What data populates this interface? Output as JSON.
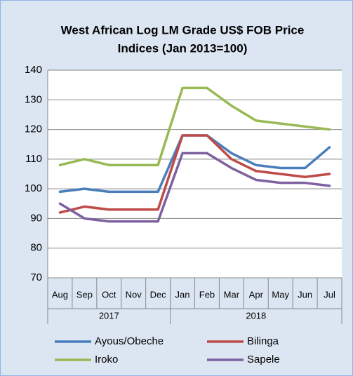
{
  "chart_data": {
    "type": "line",
    "title": [
      "West African Log LM Grade US$ FOB Price",
      "Indices (Jan 2013=100)"
    ],
    "categories": [
      "Aug",
      "Sep",
      "Oct",
      "Nov",
      "Dec",
      "Jan",
      "Feb",
      "Mar",
      "Apr",
      "May",
      "Jun",
      "Jul"
    ],
    "x_groups": [
      {
        "label": "2017",
        "count": 5
      },
      {
        "label": "2018",
        "count": 7
      }
    ],
    "series": [
      {
        "name": "Ayous/Obeche",
        "color": "#4a7ebb",
        "values": [
          99,
          100,
          99,
          99,
          99,
          118,
          118,
          112,
          108,
          107,
          107,
          114
        ]
      },
      {
        "name": "Bilinga",
        "color": "#be4b48",
        "values": [
          92,
          94,
          93,
          93,
          93,
          118,
          118,
          110,
          106,
          105,
          104,
          105
        ]
      },
      {
        "name": "Iroko",
        "color": "#98b954",
        "values": [
          108,
          110,
          108,
          108,
          108,
          134,
          134,
          128,
          123,
          122,
          121,
          120
        ]
      },
      {
        "name": "Sapele",
        "color": "#7d60a0",
        "values": [
          95,
          90,
          89,
          89,
          89,
          112,
          112,
          107,
          103,
          102,
          102,
          101
        ]
      }
    ],
    "ylim": [
      70,
      140
    ],
    "yticks": [
      70,
      80,
      90,
      100,
      110,
      120,
      130,
      140
    ],
    "grid": true,
    "legend": "bottom"
  }
}
